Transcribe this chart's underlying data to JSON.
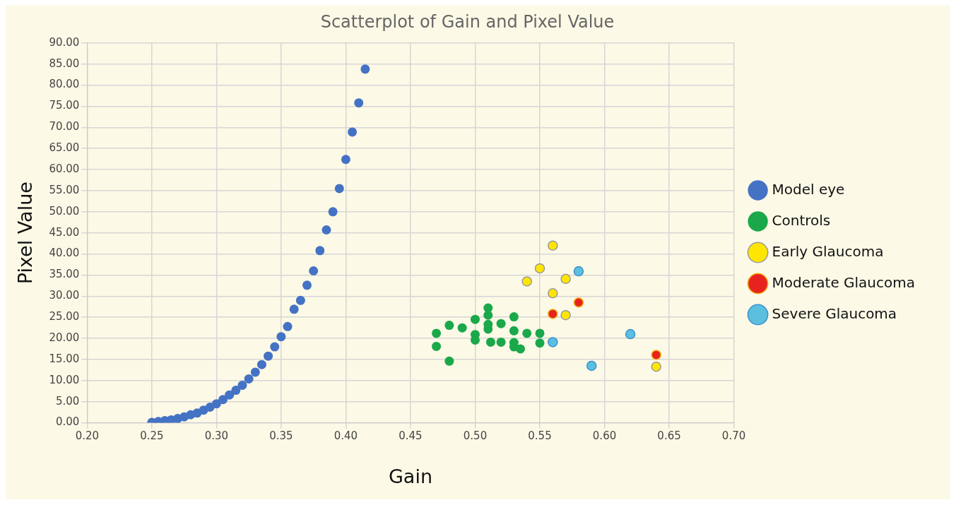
{
  "chart_data": {
    "type": "scatter",
    "title": "Scatterplot of Gain and Pixel Value",
    "xlabel": "Gain",
    "ylabel": "Pixel Value",
    "xlim": [
      0.2,
      0.7
    ],
    "xticks": [
      {
        "value": 0.2,
        "label": "0.20"
      },
      {
        "value": 0.25,
        "label": "0.25"
      },
      {
        "value": 0.3,
        "label": "0.30"
      },
      {
        "value": 0.35,
        "label": "0.35"
      },
      {
        "value": 0.4,
        "label": "0.40"
      },
      {
        "value": 0.45,
        "label": "0.45"
      },
      {
        "value": 0.5,
        "label": "0.50"
      },
      {
        "value": 0.55,
        "label": "0.55"
      },
      {
        "value": 0.6,
        "label": "0.60"
      },
      {
        "value": 0.65,
        "label": "0.65"
      },
      {
        "value": 0.7,
        "label": "0.70"
      }
    ],
    "ylim": [
      0,
      90
    ],
    "yticks": [
      {
        "value": 0,
        "label": "0.00"
      },
      {
        "value": 5,
        "label": "5.00"
      },
      {
        "value": 10,
        "label": "10.00"
      },
      {
        "value": 15,
        "label": "15.00"
      },
      {
        "value": 20,
        "label": "20.00"
      },
      {
        "value": 25,
        "label": "25.00"
      },
      {
        "value": 30,
        "label": "30.00"
      },
      {
        "value": 35,
        "label": "35.00"
      },
      {
        "value": 40,
        "label": "40.00"
      },
      {
        "value": 45,
        "label": "45.00"
      },
      {
        "value": 50,
        "label": "50.00"
      },
      {
        "value": 55,
        "label": "55.00"
      },
      {
        "value": 60,
        "label": "60.00"
      },
      {
        "value": 65,
        "label": "65.00"
      },
      {
        "value": 70,
        "label": "70.00"
      },
      {
        "value": 75,
        "label": "75.00"
      },
      {
        "value": 80,
        "label": "80.00"
      },
      {
        "value": 85,
        "label": "85.00"
      },
      {
        "value": 90,
        "label": "90.00"
      }
    ],
    "grid": true,
    "legend": "right",
    "marker": "circle",
    "series": [
      {
        "name": "Model eye",
        "color": "#4472c4",
        "x": [
          0.25,
          0.255,
          0.26,
          0.265,
          0.27,
          0.275,
          0.28,
          0.285,
          0.29,
          0.295,
          0.3,
          0.305,
          0.31,
          0.315,
          0.32,
          0.325,
          0.33,
          0.335,
          0.34,
          0.345,
          0.35,
          0.355,
          0.36,
          0.365,
          0.37,
          0.375,
          0.38,
          0.385,
          0.39,
          0.395,
          0.4,
          0.405,
          0.41,
          0.415
        ],
        "values": [
          0.1,
          0.3,
          0.5,
          0.7,
          1.0,
          1.4,
          1.9,
          2.3,
          3.0,
          3.7,
          4.5,
          5.5,
          6.6,
          7.7,
          8.9,
          10.4,
          12.0,
          13.8,
          15.8,
          18.0,
          20.4,
          22.8,
          26.9,
          29.0,
          32.6,
          36.0,
          40.8,
          45.7,
          50.0,
          55.5,
          62.4,
          68.9,
          75.8,
          83.8
        ]
      },
      {
        "name": "Controls",
        "color": "#1aa84a",
        "x": [
          0.47,
          0.47,
          0.48,
          0.48,
          0.49,
          0.5,
          0.5,
          0.5,
          0.51,
          0.51,
          0.51,
          0.51,
          0.512,
          0.52,
          0.52,
          0.53,
          0.53,
          0.53,
          0.53,
          0.535,
          0.54,
          0.55,
          0.55
        ],
        "values": [
          21.2,
          18.1,
          23.1,
          14.6,
          22.5,
          24.5,
          20.9,
          19.6,
          27.2,
          25.5,
          23.3,
          22.2,
          19.1,
          23.5,
          19.1,
          25.1,
          21.8,
          19.0,
          18.0,
          17.5,
          21.2,
          21.2,
          18.9
        ]
      },
      {
        "name": "Early Glaucoma",
        "color": "#ffe600",
        "x": [
          0.56,
          0.55,
          0.57,
          0.54,
          0.56,
          0.57,
          0.64
        ],
        "values": [
          42.0,
          36.6,
          34.1,
          33.5,
          30.7,
          25.5,
          13.3
        ]
      },
      {
        "name": "Moderate Glaucoma",
        "color": "#e8231f",
        "x": [
          0.56,
          0.58,
          0.64
        ],
        "values": [
          25.8,
          28.5,
          16.1
        ]
      },
      {
        "name": "Severe Glaucoma",
        "color": "#5bc0de",
        "x": [
          0.58,
          0.56,
          0.59,
          0.62
        ],
        "values": [
          35.9,
          19.1,
          13.5,
          21.0
        ]
      }
    ]
  }
}
